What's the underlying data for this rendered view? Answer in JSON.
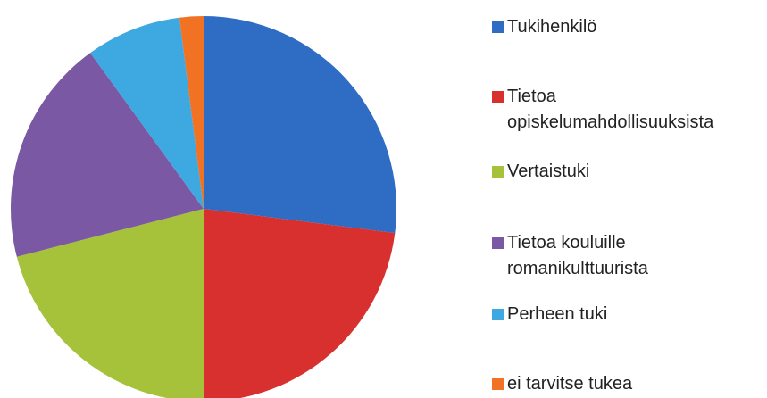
{
  "chart_data": {
    "type": "pie",
    "categories": [
      "Tukihenkilö",
      "Tietoa opiskelumahdollisuuksista",
      "Vertaistuki",
      "Tietoa kouluille romanikulttuurista",
      "Perheen tuki",
      "ei tarvitse tukea"
    ],
    "values": [
      27,
      23,
      21,
      19,
      8,
      2
    ],
    "colors": [
      "#2f6cc4",
      "#d8302f",
      "#a5c23a",
      "#7a58a4",
      "#3ea8e0",
      "#f07222"
    ],
    "legend": "right"
  }
}
